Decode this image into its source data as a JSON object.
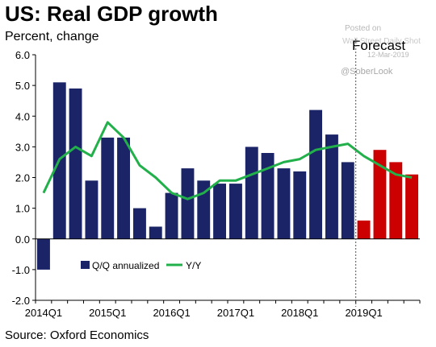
{
  "title": "US: Real GDP growth",
  "subtitle": "Percent, change",
  "source": "Source: Oxford Economics",
  "forecast_label": "Forecast",
  "watermark": {
    "posted": "Posted on",
    "site": "Wall Street Daily Shot",
    "date": "12-Mar-2019",
    "handle": "@SoberLook"
  },
  "colors": {
    "actual_bar": "#1a2466",
    "forecast_bar": "#cc0000",
    "line": "#22b04b",
    "forecast_divider": "#555555"
  },
  "chart_data": {
    "type": "bar",
    "ylim": [
      -2.0,
      6.0
    ],
    "y_ticks": [
      "-2.0",
      "-1.0",
      "0.0",
      "1.0",
      "2.0",
      "3.0",
      "4.0",
      "5.0",
      "6.0"
    ],
    "x_tick_labels": [
      "2014Q1",
      "2015Q1",
      "2016Q1",
      "2017Q1",
      "2018Q1",
      "2019Q1"
    ],
    "categories": [
      "2014Q1",
      "2014Q2",
      "2014Q3",
      "2014Q4",
      "2015Q1",
      "2015Q2",
      "2015Q3",
      "2015Q4",
      "2016Q1",
      "2016Q2",
      "2016Q3",
      "2016Q4",
      "2017Q1",
      "2017Q2",
      "2017Q3",
      "2017Q4",
      "2018Q1",
      "2018Q2",
      "2018Q3",
      "2018Q4",
      "2019Q1",
      "2019Q2",
      "2019Q3",
      "2019Q4"
    ],
    "forecast_start": "2019Q1",
    "series": [
      {
        "name": "Q/Q annualized",
        "type": "bar",
        "values": [
          -1.0,
          5.1,
          4.9,
          1.9,
          3.3,
          3.3,
          1.0,
          0.4,
          1.5,
          2.3,
          1.9,
          1.8,
          1.8,
          3.0,
          2.8,
          2.3,
          2.2,
          4.2,
          3.4,
          2.5,
          0.6,
          2.9,
          2.5,
          2.1
        ]
      },
      {
        "name": "Y/Y",
        "type": "line",
        "values": [
          1.5,
          2.6,
          3.0,
          2.7,
          3.8,
          3.3,
          2.4,
          2.0,
          1.5,
          1.3,
          1.5,
          1.9,
          1.9,
          2.1,
          2.3,
          2.5,
          2.6,
          2.9,
          3.0,
          3.1,
          2.7,
          2.4,
          2.1,
          2.0
        ]
      }
    ],
    "grid": false,
    "legend_position": "bottom-center"
  }
}
